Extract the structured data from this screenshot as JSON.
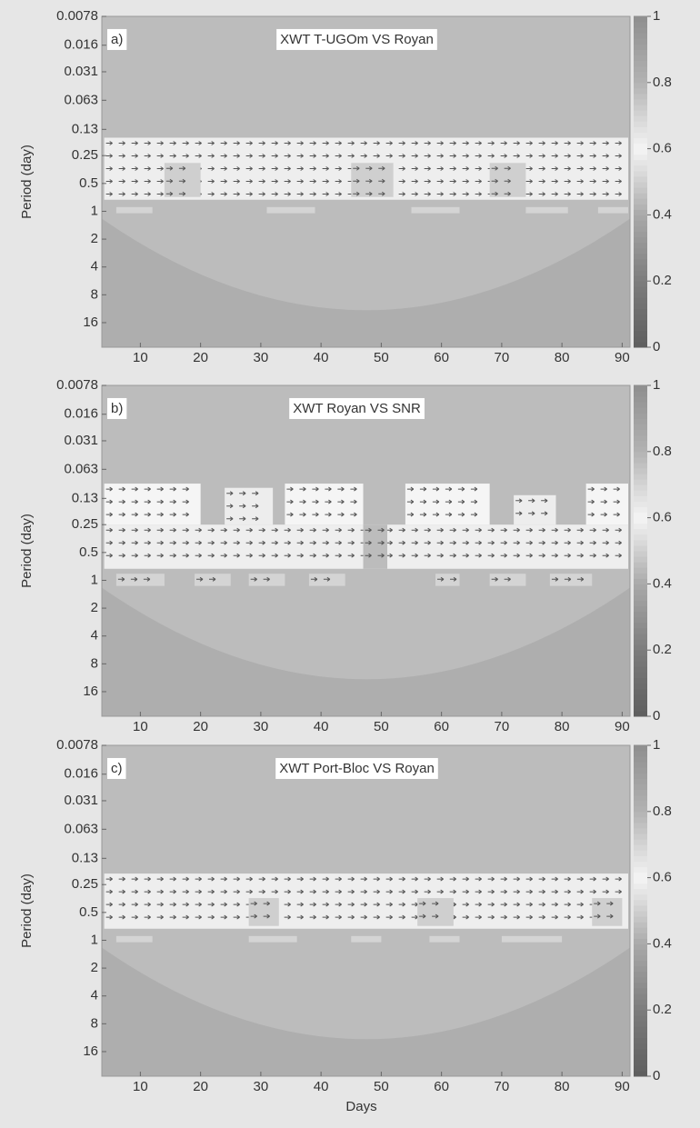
{
  "chart_data": [
    {
      "type": "heatmap",
      "label": "a)",
      "annotation": "XWT    T-UGOm VS Royan",
      "ylabel": "Period (day)",
      "xlim": [
        3.6,
        91.3
      ],
      "xticks": [
        10,
        20,
        30,
        40,
        50,
        60,
        70,
        80,
        90
      ],
      "ylim": [
        0.0078,
        29.5
      ],
      "ylog": true,
      "yticks": [
        0.0078,
        0.016,
        0.031,
        0.063,
        0.13,
        0.25,
        0.5,
        1,
        2,
        4,
        8,
        16
      ],
      "zlim": [
        0,
        1
      ],
      "zticks": [
        0,
        0.2,
        0.4,
        0.6,
        0.8,
        1
      ],
      "background": 0.45,
      "colors": [
        "#5e5e5e",
        "#7c7c7c",
        "#a9a9a9",
        "#f5f5f5",
        "#b3b3b3",
        "#8e8e8e"
      ],
      "regions": [
        {
          "x": [
            4,
            91
          ],
          "y": [
            0.16,
            0.75
          ],
          "z": 0.62
        },
        {
          "x": [
            14,
            20
          ],
          "y": [
            0.3,
            0.7
          ],
          "z": 0.5
        },
        {
          "x": [
            45,
            52
          ],
          "y": [
            0.3,
            0.7
          ],
          "z": 0.5
        },
        {
          "x": [
            68,
            74
          ],
          "y": [
            0.3,
            0.7
          ],
          "z": 0.5
        },
        {
          "x": [
            6,
            12
          ],
          "y": [
            0.9,
            1.05
          ],
          "z": 0.7
        },
        {
          "x": [
            31,
            39
          ],
          "y": [
            0.9,
            1.05
          ],
          "z": 0.7
        },
        {
          "x": [
            55,
            63
          ],
          "y": [
            0.9,
            1.05
          ],
          "z": 0.7
        },
        {
          "x": [
            74,
            81
          ],
          "y": [
            0.9,
            1.05
          ],
          "z": 0.7
        },
        {
          "x": [
            86,
            91
          ],
          "y": [
            0.9,
            1.05
          ],
          "z": 0.7
        }
      ]
    },
    {
      "type": "heatmap",
      "label": "b)",
      "annotation": "XWT     Royan VS SNR",
      "ylabel": "Period (day)",
      "xlim": [
        3.6,
        91.3
      ],
      "xticks": [
        10,
        20,
        30,
        40,
        50,
        60,
        70,
        80,
        90
      ],
      "ylim": [
        0.0078,
        29.5
      ],
      "ylog": true,
      "yticks": [
        0.0078,
        0.016,
        0.031,
        0.063,
        0.13,
        0.25,
        0.5,
        1,
        2,
        4,
        8,
        16
      ],
      "zlim": [
        0,
        1
      ],
      "zticks": [
        0,
        0.2,
        0.4,
        0.6,
        0.8,
        1
      ],
      "background": 0.45,
      "colors": [
        "#5e5e5e",
        "#7c7c7c",
        "#a9a9a9",
        "#f5f5f5",
        "#b3b3b3",
        "#8e8e8e"
      ],
      "regions": [
        {
          "x": [
            4,
            91
          ],
          "y": [
            0.25,
            0.75
          ],
          "z": 0.62
        },
        {
          "x": [
            4,
            20
          ],
          "y": [
            0.09,
            0.25
          ],
          "z": 0.6
        },
        {
          "x": [
            24,
            32
          ],
          "y": [
            0.1,
            0.25
          ],
          "z": 0.58
        },
        {
          "x": [
            34,
            47
          ],
          "y": [
            0.09,
            0.25
          ],
          "z": 0.6
        },
        {
          "x": [
            54,
            68
          ],
          "y": [
            0.09,
            0.25
          ],
          "z": 0.6
        },
        {
          "x": [
            72,
            79
          ],
          "y": [
            0.12,
            0.25
          ],
          "z": 0.58
        },
        {
          "x": [
            84,
            91
          ],
          "y": [
            0.09,
            0.25
          ],
          "z": 0.6
        },
        {
          "x": [
            47,
            51
          ],
          "y": [
            0.25,
            0.75
          ],
          "z": 0.45
        },
        {
          "x": [
            6,
            14
          ],
          "y": [
            0.85,
            1.15
          ],
          "z": 0.7
        },
        {
          "x": [
            19,
            25
          ],
          "y": [
            0.85,
            1.15
          ],
          "z": 0.7
        },
        {
          "x": [
            28,
            34
          ],
          "y": [
            0.85,
            1.15
          ],
          "z": 0.7
        },
        {
          "x": [
            38,
            44
          ],
          "y": [
            0.85,
            1.15
          ],
          "z": 0.7
        },
        {
          "x": [
            59,
            63
          ],
          "y": [
            0.85,
            1.15
          ],
          "z": 0.7
        },
        {
          "x": [
            68,
            74
          ],
          "y": [
            0.85,
            1.15
          ],
          "z": 0.7
        },
        {
          "x": [
            78,
            85
          ],
          "y": [
            0.85,
            1.15
          ],
          "z": 0.7
        }
      ]
    },
    {
      "type": "heatmap",
      "label": "c)",
      "annotation": "XWT     Port-Bloc VS Royan",
      "ylabel": "Period (day)",
      "xlabel": "Days",
      "xlim": [
        3.6,
        91.3
      ],
      "xticks": [
        10,
        20,
        30,
        40,
        50,
        60,
        70,
        80,
        90
      ],
      "ylim": [
        0.0078,
        29.5
      ],
      "ylog": true,
      "yticks": [
        0.0078,
        0.016,
        0.031,
        0.063,
        0.13,
        0.25,
        0.5,
        1,
        2,
        4,
        8,
        16
      ],
      "zlim": [
        0,
        1
      ],
      "zticks": [
        0,
        0.2,
        0.4,
        0.6,
        0.8,
        1
      ],
      "background": 0.45,
      "colors": [
        "#5e5e5e",
        "#7c7c7c",
        "#a9a9a9",
        "#f5f5f5",
        "#b3b3b3",
        "#8e8e8e"
      ],
      "regions": [
        {
          "x": [
            4,
            91
          ],
          "y": [
            0.19,
            0.75
          ],
          "z": 0.62
        },
        {
          "x": [
            28,
            33
          ],
          "y": [
            0.35,
            0.7
          ],
          "z": 0.5
        },
        {
          "x": [
            56,
            62
          ],
          "y": [
            0.35,
            0.7
          ],
          "z": 0.5
        },
        {
          "x": [
            85,
            90
          ],
          "y": [
            0.35,
            0.7
          ],
          "z": 0.5
        },
        {
          "x": [
            6,
            12
          ],
          "y": [
            0.9,
            1.05
          ],
          "z": 0.7
        },
        {
          "x": [
            28,
            36
          ],
          "y": [
            0.9,
            1.05
          ],
          "z": 0.7
        },
        {
          "x": [
            45,
            50
          ],
          "y": [
            0.9,
            1.05
          ],
          "z": 0.7
        },
        {
          "x": [
            58,
            63
          ],
          "y": [
            0.9,
            1.05
          ],
          "z": 0.7
        },
        {
          "x": [
            70,
            80
          ],
          "y": [
            0.9,
            1.05
          ],
          "z": 0.7
        }
      ]
    }
  ]
}
